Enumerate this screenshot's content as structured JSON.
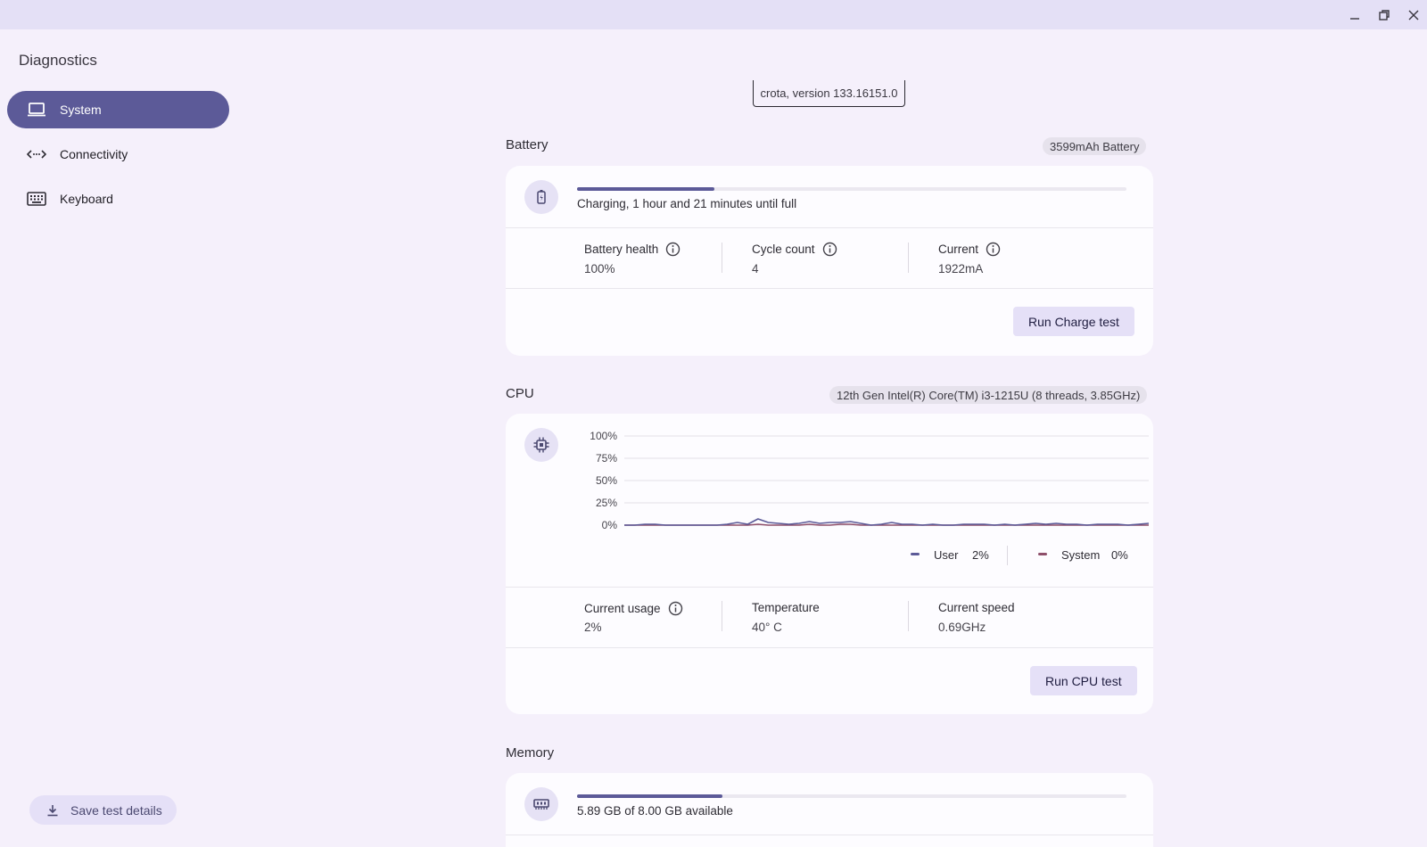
{
  "window": {
    "controls": [
      {
        "name": "minimize",
        "icon": "minimize-icon"
      },
      {
        "name": "restore",
        "icon": "restore-icon"
      },
      {
        "name": "close",
        "icon": "close-icon"
      }
    ]
  },
  "app": {
    "title": "Diagnostics"
  },
  "sidebar": {
    "items": [
      {
        "label": "System",
        "icon": "laptop-icon",
        "active": true
      },
      {
        "label": "Connectivity",
        "icon": "connectivity-arrows-icon",
        "active": false
      },
      {
        "label": "Keyboard",
        "icon": "keyboard-icon",
        "active": false
      }
    ],
    "save_label": "Save test details",
    "save_icon": "download-icon"
  },
  "version_chip": "crota, version 133.16151.0",
  "battery": {
    "title": "Battery",
    "chip": "3599mAh Battery",
    "icon": "battery-icon",
    "charge_fraction": 0.25,
    "status": "Charging, 1 hour and 21 minutes until full",
    "metrics": [
      {
        "label": "Battery health",
        "value": "100%",
        "info": true
      },
      {
        "label": "Cycle count",
        "value": "4",
        "info": true
      },
      {
        "label": "Current",
        "value": "1922mA",
        "info": true
      }
    ],
    "button": "Run Charge test"
  },
  "cpu": {
    "title": "CPU",
    "chip": "12th Gen Intel(R) Core(TM) i3-1215U (8 threads, 3.85GHz)",
    "icon": "chip-icon",
    "legend": [
      {
        "label": "User",
        "value": "2%",
        "color": "#5c5a98"
      },
      {
        "label": "System",
        "value": "0%",
        "color": "#8e4f6a"
      }
    ],
    "metrics": [
      {
        "label": "Current usage",
        "value": "2%",
        "info": true
      },
      {
        "label": "Temperature",
        "value": "40° C",
        "info": false
      },
      {
        "label": "Current speed",
        "value": "0.69GHz",
        "info": false
      }
    ],
    "button": "Run CPU test"
  },
  "chart_data": {
    "type": "line",
    "title": "",
    "xlabel": "",
    "ylabel": "",
    "ylim": [
      0,
      100
    ],
    "yticks": [
      "100%",
      "75%",
      "50%",
      "25%",
      "0%"
    ],
    "grid": true,
    "legend": "bottom-right",
    "series": [
      {
        "name": "User",
        "color": "#5c5a98",
        "values": [
          0,
          0,
          1,
          1,
          0,
          0,
          0,
          0,
          0,
          0,
          1,
          3,
          1,
          7,
          3,
          2,
          1,
          2,
          4,
          2,
          3,
          3,
          4,
          2,
          0,
          1,
          3,
          1,
          1,
          0,
          1,
          0,
          0,
          1,
          1,
          1,
          0,
          1,
          0,
          1,
          2,
          1,
          2,
          1,
          1,
          0,
          1,
          1,
          1,
          0,
          1,
          2
        ]
      },
      {
        "name": "System",
        "color": "#8e4f6a",
        "values": [
          0,
          0,
          0,
          0,
          0,
          0,
          0,
          0,
          0,
          0,
          0,
          0,
          0,
          1,
          0,
          0,
          0,
          0,
          1,
          0,
          0,
          1,
          1,
          0,
          0,
          0,
          0,
          0,
          0,
          0,
          0,
          0,
          0,
          0,
          0,
          0,
          0,
          0,
          0,
          0,
          0,
          0,
          0,
          0,
          0,
          0,
          0,
          0,
          0,
          0,
          0,
          0
        ]
      }
    ]
  },
  "memory": {
    "title": "Memory",
    "icon": "memory-icon",
    "used_fraction": 0.264,
    "status": "5.89 GB of 8.00 GB available"
  }
}
